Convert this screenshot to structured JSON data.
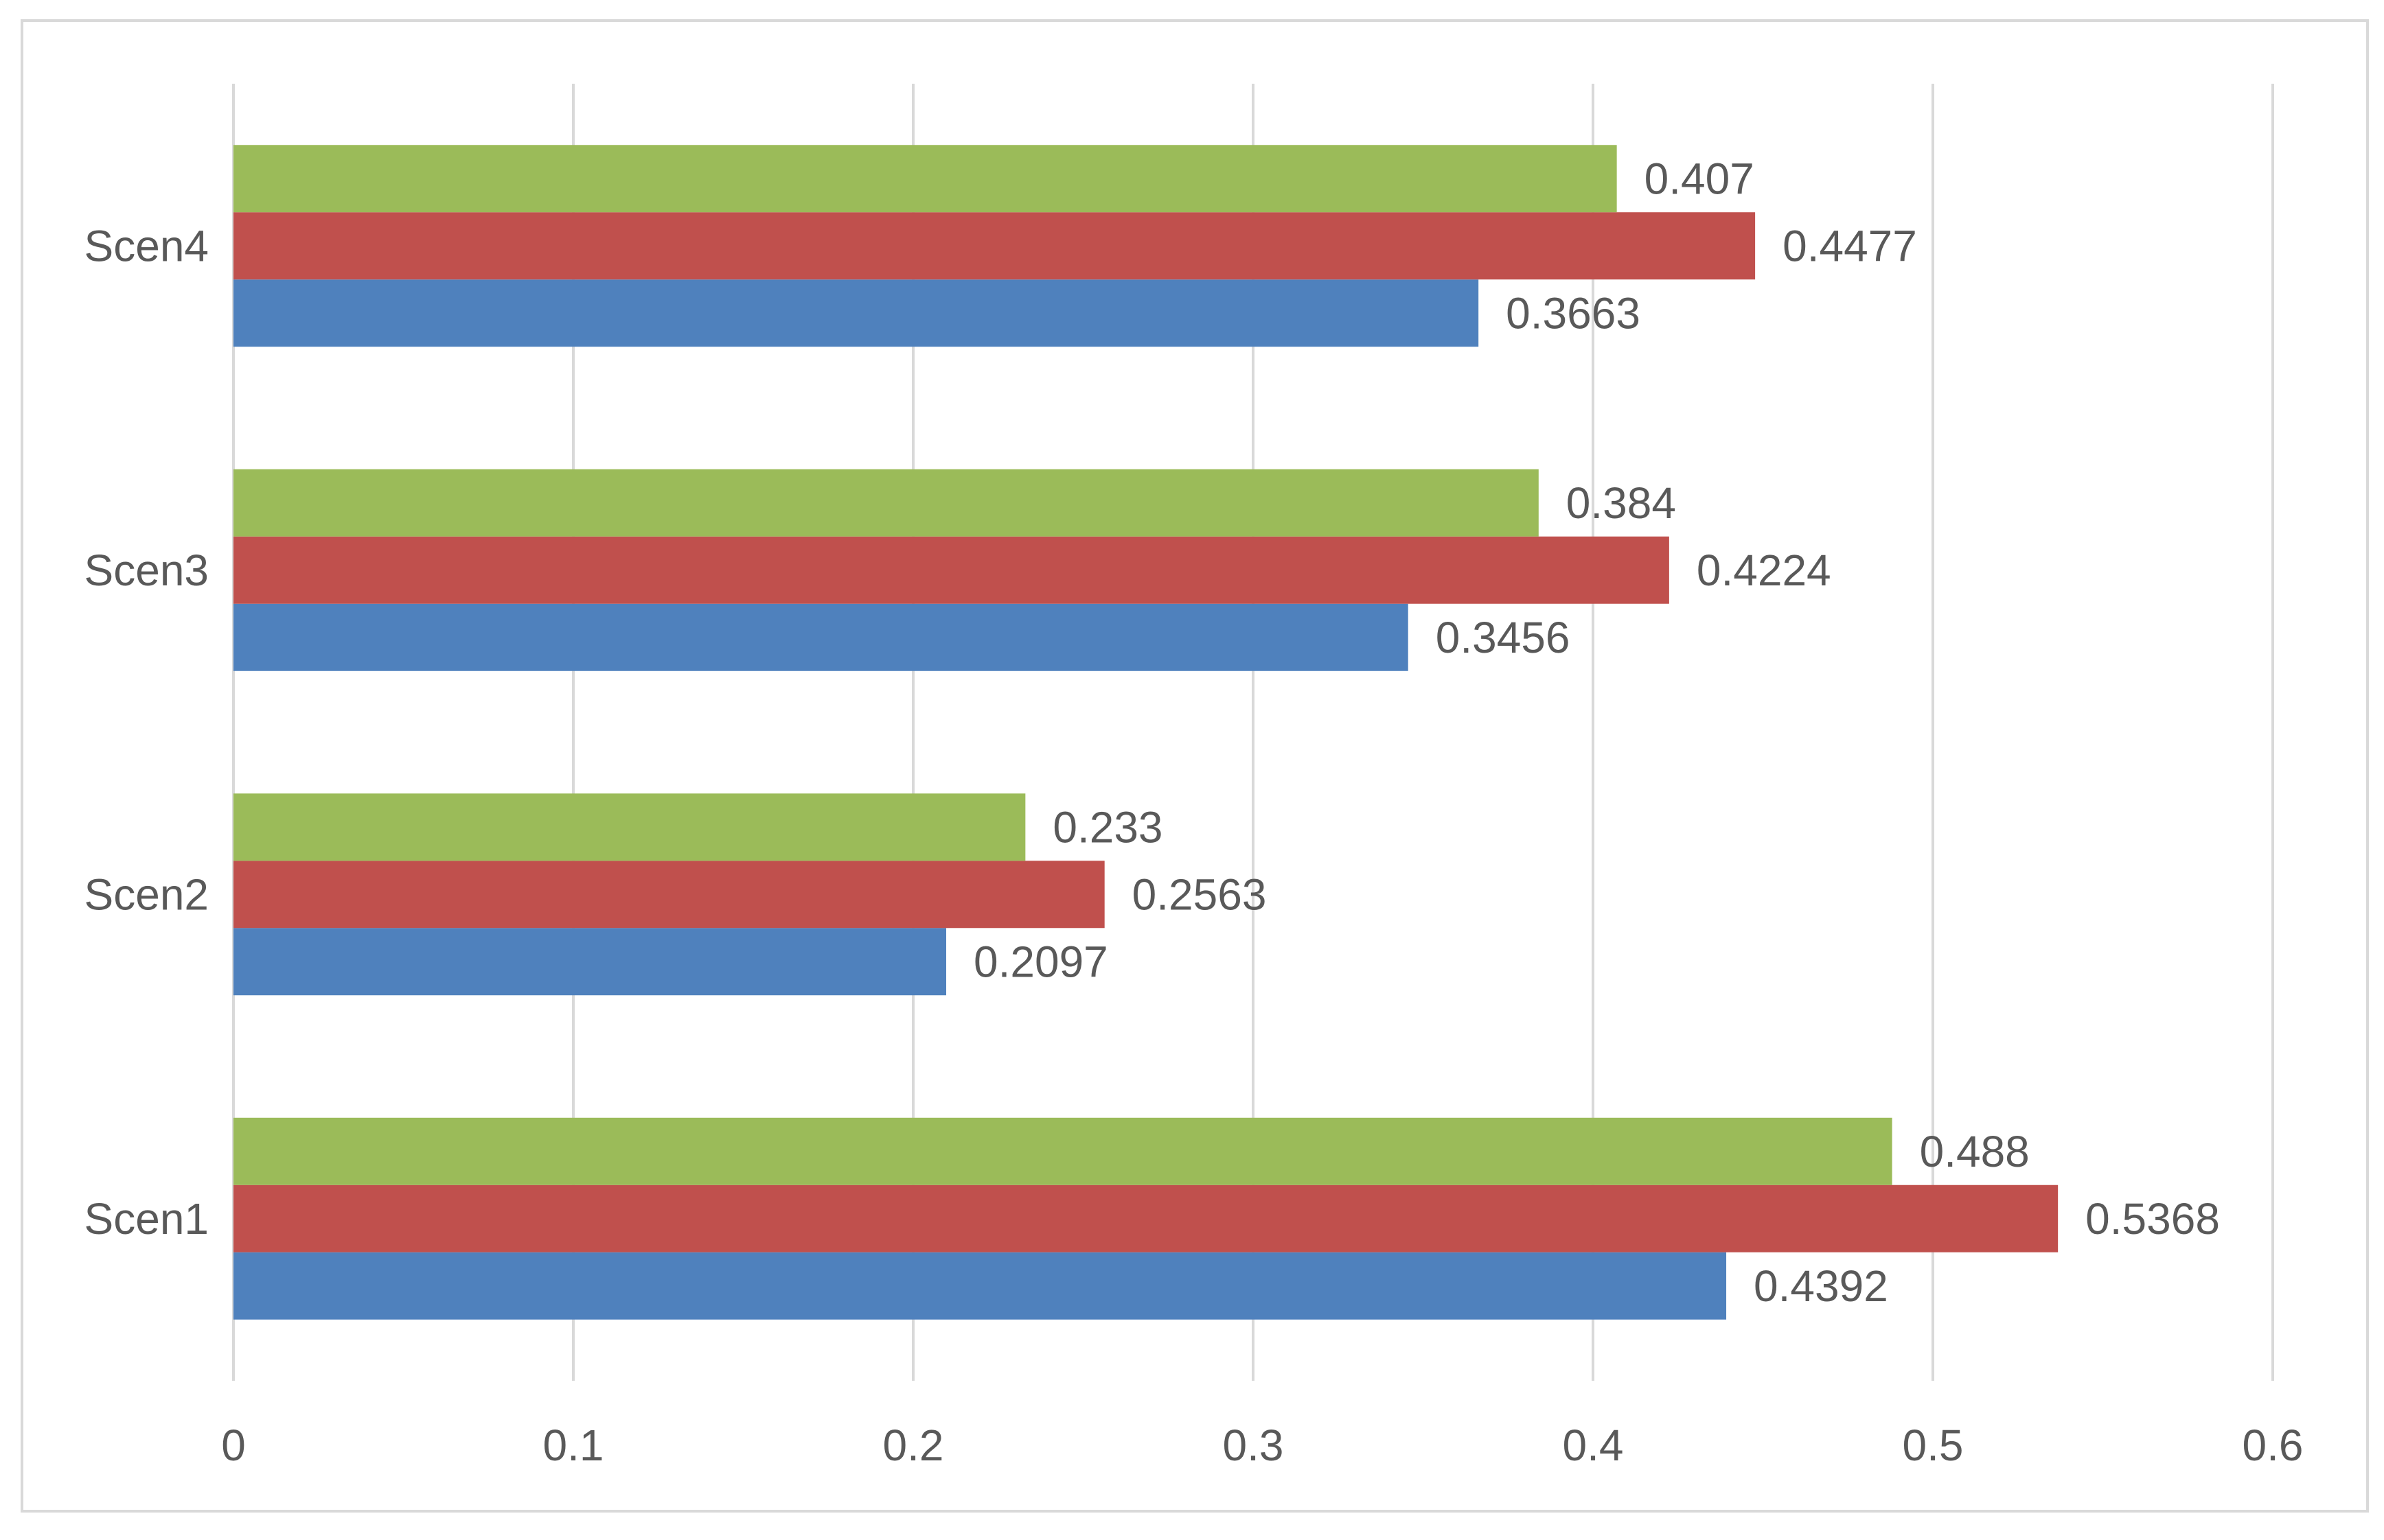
{
  "chart_data": {
    "type": "bar",
    "orientation": "horizontal",
    "categories": [
      "Scen1",
      "Scen2",
      "Scen3",
      "Scen4"
    ],
    "series": [
      {
        "color": "#4f81bd",
        "values": [
          0.4392,
          0.2097,
          0.3456,
          0.3663
        ],
        "labels": [
          "0.4392",
          "0.2097",
          "0.3456",
          "0.3663"
        ]
      },
      {
        "color": "#c0504d",
        "values": [
          0.5368,
          0.2563,
          0.4224,
          0.4477
        ],
        "labels": [
          "0.5368",
          "0.2563",
          "0.4224",
          "0.4477"
        ]
      },
      {
        "color": "#9bbb59",
        "values": [
          0.488,
          0.233,
          0.384,
          0.407
        ],
        "labels": [
          "0.488",
          "0.233",
          "0.384",
          "0.407"
        ]
      }
    ],
    "x_ticks": [
      "0",
      "0.1",
      "0.2",
      "0.3",
      "0.4",
      "0.5",
      "0.6"
    ],
    "xlim": [
      0,
      0.6
    ],
    "grid": "vertical",
    "legend": "none",
    "title": "",
    "xlabel": "",
    "ylabel": ""
  }
}
